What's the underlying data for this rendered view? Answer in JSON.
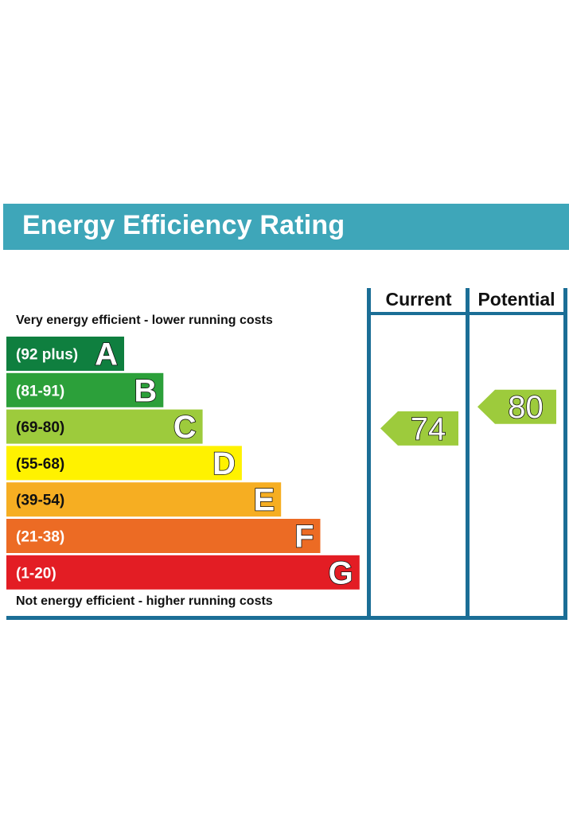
{
  "header": {
    "title": "Energy Efficiency Rating"
  },
  "columns": {
    "current": "Current",
    "potential": "Potential"
  },
  "notes": {
    "top": "Very energy efficient - lower running costs",
    "bottom": "Not energy efficient - higher running costs"
  },
  "chart_data": {
    "type": "bar",
    "title": "Energy Efficiency Rating",
    "categories": [
      "A",
      "B",
      "C",
      "D",
      "E",
      "F",
      "G"
    ],
    "bands": [
      {
        "letter": "A",
        "range": "(92 plus)",
        "min": 92,
        "max": 100,
        "color": "#0f7f3f"
      },
      {
        "letter": "B",
        "range": "(81-91)",
        "min": 81,
        "max": 91,
        "color": "#2ca03a"
      },
      {
        "letter": "C",
        "range": "(69-80)",
        "min": 69,
        "max": 80,
        "color": "#9dcb3c"
      },
      {
        "letter": "D",
        "range": "(55-68)",
        "min": 55,
        "max": 68,
        "color": "#fff200"
      },
      {
        "letter": "E",
        "range": "(39-54)",
        "min": 39,
        "max": 54,
        "color": "#f6ae22"
      },
      {
        "letter": "F",
        "range": "(21-38)",
        "min": 21,
        "max": 38,
        "color": "#ec6b24"
      },
      {
        "letter": "G",
        "range": "(1-20)",
        "min": 1,
        "max": 20,
        "color": "#e31d24"
      }
    ],
    "series": [
      {
        "name": "Current",
        "value": 74,
        "band": "C",
        "color": "#9dcb3c"
      },
      {
        "name": "Potential",
        "value": 80,
        "band": "C",
        "color": "#9dcb3c"
      }
    ],
    "ylim": [
      1,
      100
    ]
  }
}
